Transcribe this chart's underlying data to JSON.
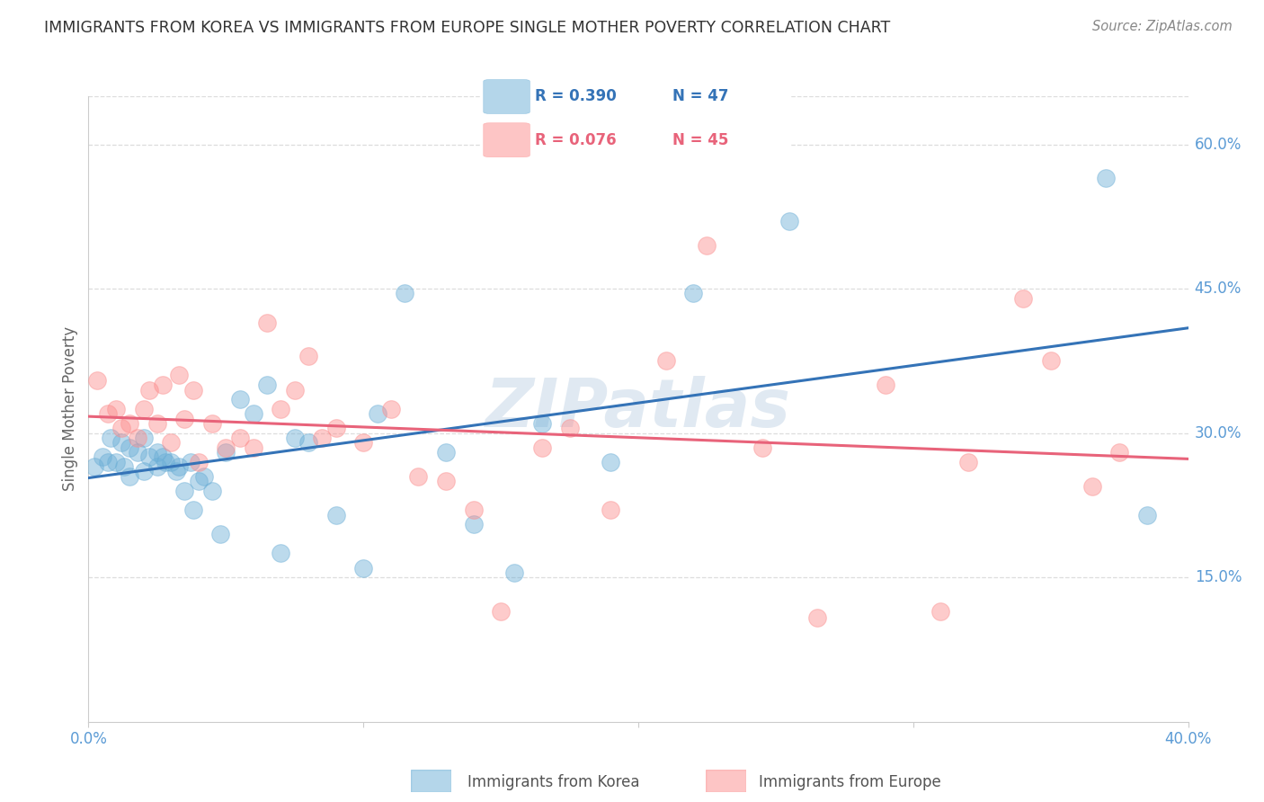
{
  "title": "IMMIGRANTS FROM KOREA VS IMMIGRANTS FROM EUROPE SINGLE MOTHER POVERTY CORRELATION CHART",
  "source": "Source: ZipAtlas.com",
  "ylabel": "Single Mother Poverty",
  "watermark": "ZIPatlas",
  "xlim": [
    0.0,
    0.4
  ],
  "ylim": [
    0.0,
    0.65
  ],
  "ytick_right": [
    0.15,
    0.3,
    0.45,
    0.6
  ],
  "ytick_right_labels": [
    "15.0%",
    "30.0%",
    "45.0%",
    "60.0%"
  ],
  "korea_color": "#6baed6",
  "europe_color": "#fc8d8d",
  "korea_line_color": "#3473b7",
  "europe_line_color": "#e8637a",
  "legend_korea_R": "R = 0.390",
  "legend_korea_N": "N = 47",
  "legend_europe_R": "R = 0.076",
  "legend_europe_N": "N = 45",
  "korea_x": [
    0.002,
    0.005,
    0.007,
    0.008,
    0.01,
    0.012,
    0.013,
    0.015,
    0.015,
    0.018,
    0.02,
    0.02,
    0.022,
    0.025,
    0.025,
    0.027,
    0.028,
    0.03,
    0.032,
    0.033,
    0.035,
    0.037,
    0.038,
    0.04,
    0.042,
    0.045,
    0.048,
    0.05,
    0.055,
    0.06,
    0.065,
    0.07,
    0.075,
    0.08,
    0.09,
    0.1,
    0.105,
    0.115,
    0.13,
    0.14,
    0.155,
    0.165,
    0.19,
    0.22,
    0.255,
    0.37,
    0.385
  ],
  "korea_y": [
    0.265,
    0.275,
    0.27,
    0.295,
    0.27,
    0.29,
    0.265,
    0.255,
    0.285,
    0.28,
    0.26,
    0.295,
    0.275,
    0.265,
    0.28,
    0.275,
    0.27,
    0.27,
    0.26,
    0.265,
    0.24,
    0.27,
    0.22,
    0.25,
    0.255,
    0.24,
    0.195,
    0.28,
    0.335,
    0.32,
    0.35,
    0.175,
    0.295,
    0.29,
    0.215,
    0.16,
    0.32,
    0.445,
    0.28,
    0.205,
    0.155,
    0.31,
    0.27,
    0.445,
    0.52,
    0.565,
    0.215
  ],
  "europe_x": [
    0.003,
    0.007,
    0.01,
    0.012,
    0.015,
    0.018,
    0.02,
    0.022,
    0.025,
    0.027,
    0.03,
    0.033,
    0.035,
    0.038,
    0.04,
    0.045,
    0.05,
    0.055,
    0.06,
    0.065,
    0.07,
    0.075,
    0.08,
    0.085,
    0.09,
    0.1,
    0.11,
    0.12,
    0.13,
    0.14,
    0.15,
    0.165,
    0.175,
    0.19,
    0.21,
    0.225,
    0.245,
    0.265,
    0.29,
    0.31,
    0.32,
    0.34,
    0.35,
    0.365,
    0.375
  ],
  "europe_y": [
    0.355,
    0.32,
    0.325,
    0.305,
    0.31,
    0.295,
    0.325,
    0.345,
    0.31,
    0.35,
    0.29,
    0.36,
    0.315,
    0.345,
    0.27,
    0.31,
    0.285,
    0.295,
    0.285,
    0.415,
    0.325,
    0.345,
    0.38,
    0.295,
    0.305,
    0.29,
    0.325,
    0.255,
    0.25,
    0.22,
    0.115,
    0.285,
    0.305,
    0.22,
    0.375,
    0.495,
    0.285,
    0.108,
    0.35,
    0.115,
    0.27,
    0.44,
    0.375,
    0.245,
    0.28
  ],
  "grid_color": "#dddddd",
  "title_color": "#333333",
  "axis_label_color": "#5b9bd5",
  "ylabel_color": "#666666",
  "source_color": "#888888",
  "background_color": "#ffffff"
}
